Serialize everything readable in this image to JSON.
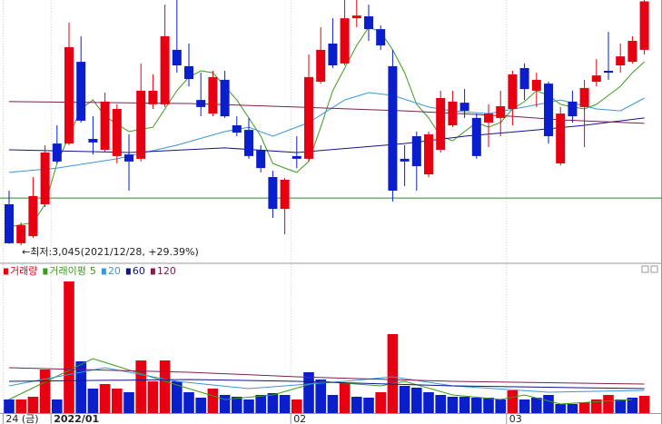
{
  "chart_data": [
    {
      "type": "candlestick",
      "annotation": "←최저:3,045(2021/12/28, +29.39%)",
      "up_color": "#e60012",
      "down_color": "#0a1ecc",
      "open": [
        3195,
        3052,
        3078,
        3195,
        3418,
        3418,
        3718,
        3435,
        3395,
        3372,
        3378,
        3362,
        3562,
        3562,
        3762,
        3702,
        3578,
        3528,
        3652,
        3485,
        3468,
        3395,
        3295,
        3178,
        3372,
        3362,
        3645,
        3785,
        3712,
        3878,
        3885,
        3838,
        3702,
        3362,
        3445,
        3305,
        3395,
        3485,
        3568,
        3512,
        3495,
        3512,
        3545,
        3695,
        3612,
        3638,
        3345,
        3572,
        3552,
        3645,
        3685,
        3705,
        3718,
        3762
      ],
      "high": [
        3245,
        3128,
        3295,
        3412,
        3485,
        3862,
        3812,
        3518,
        3605,
        3562,
        3452,
        3712,
        3672,
        3928,
        3945,
        3785,
        3678,
        3685,
        3685,
        3518,
        3512,
        3412,
        3318,
        3292,
        3445,
        3745,
        3845,
        3878,
        3945,
        3945,
        3928,
        3852,
        3762,
        3412,
        3462,
        3462,
        3612,
        3612,
        3618,
        3528,
        3562,
        3612,
        3685,
        3712,
        3678,
        3645,
        3552,
        3612,
        3652,
        3728,
        3828,
        3785,
        3812,
        3945
      ],
      "low": [
        3050,
        3045,
        3072,
        3185,
        3345,
        3412,
        3495,
        3378,
        3385,
        3345,
        3245,
        3352,
        3545,
        3552,
        3678,
        3628,
        3518,
        3518,
        3512,
        3445,
        3362,
        3312,
        3145,
        3085,
        3328,
        3352,
        3638,
        3695,
        3705,
        3845,
        3795,
        3762,
        3205,
        3262,
        3245,
        3295,
        3385,
        3478,
        3512,
        3362,
        3405,
        3445,
        3485,
        3578,
        3552,
        3418,
        3338,
        3495,
        3405,
        3628,
        3652,
        3678,
        3712,
        3745
      ],
      "close": [
        3052,
        3118,
        3225,
        3385,
        3352,
        3772,
        3502,
        3422,
        3572,
        3545,
        3352,
        3612,
        3612,
        3812,
        3705,
        3655,
        3552,
        3662,
        3518,
        3458,
        3372,
        3328,
        3178,
        3285,
        3362,
        3662,
        3762,
        3705,
        3878,
        3888,
        3838,
        3778,
        3245,
        3352,
        3335,
        3452,
        3585,
        3572,
        3538,
        3372,
        3528,
        3555,
        3672,
        3618,
        3652,
        3445,
        3528,
        3518,
        3622,
        3668,
        3678,
        3738,
        3795,
        3940
      ],
      "ylim": [
        2985,
        3945
      ],
      "hline": 3218,
      "hline_color": "#2e8b2e",
      "lines": [
        {
          "color": "#3d9a1e",
          "x": [
            0,
            2,
            3,
            4,
            5,
            6,
            7,
            8,
            10,
            12,
            14,
            15,
            16,
            17,
            18,
            19,
            20,
            21,
            22,
            23,
            24,
            25,
            26,
            27,
            28,
            29,
            30,
            31,
            32,
            33,
            34,
            35,
            36,
            37,
            38,
            39,
            40,
            41,
            42,
            43,
            44,
            45,
            46,
            47,
            48,
            49,
            50,
            51,
            52,
            53
          ],
          "values": [
            3112,
            3128,
            3195,
            3345,
            3445,
            3545,
            3578,
            3518,
            3462,
            3478,
            3612,
            3662,
            3685,
            3678,
            3628,
            3578,
            3512,
            3445,
            3345,
            3328,
            3312,
            3352,
            3478,
            3612,
            3695,
            3778,
            3845,
            3828,
            3762,
            3678,
            3562,
            3512,
            3445,
            3428,
            3462,
            3495,
            3478,
            3495,
            3545,
            3572,
            3612,
            3595,
            3562,
            3552,
            3545,
            3562,
            3595,
            3628,
            3678,
            3718
          ]
        },
        {
          "color": "#3a97d8",
          "x": [
            0,
            4,
            9,
            14,
            18,
            20,
            22,
            25,
            28,
            30,
            32,
            35,
            37,
            40,
            43,
            46,
            49,
            51,
            53
          ],
          "values": [
            3312,
            3328,
            3362,
            3412,
            3462,
            3478,
            3445,
            3495,
            3578,
            3605,
            3595,
            3552,
            3538,
            3528,
            3552,
            3578,
            3545,
            3538,
            3585
          ]
        },
        {
          "color": "#14148c",
          "x": [
            0,
            10,
            18,
            24,
            33,
            38,
            44,
            48,
            53
          ],
          "values": [
            3395,
            3385,
            3402,
            3385,
            3418,
            3445,
            3468,
            3485,
            3512
          ]
        },
        {
          "color": "#7a2050",
          "x": [
            0,
            15,
            24,
            33,
            42,
            46,
            53
          ],
          "values": [
            3572,
            3565,
            3552,
            3538,
            3518,
            3505,
            3492
          ]
        }
      ],
      "xticks": [
        {
          "value": 0,
          "label": "24 (금)"
        },
        {
          "value": 4,
          "label": "2022/01"
        },
        {
          "value": 24,
          "label": "02"
        },
        {
          "value": 42,
          "label": "03"
        }
      ]
    },
    {
      "type": "bar",
      "series": [
        {
          "name": "거래량",
          "color": "#e60012",
          "values": [
            15,
            15,
            18,
            48,
            15,
            145,
            57,
            27,
            32,
            27,
            23,
            58,
            35,
            58,
            35,
            23,
            17,
            27,
            20,
            18,
            15,
            20,
            22,
            20,
            15,
            45,
            37,
            20,
            33,
            18,
            17,
            23,
            87,
            30,
            28,
            23,
            20,
            18,
            18,
            17,
            17,
            15,
            25,
            15,
            17,
            20,
            10,
            10,
            12,
            15,
            20,
            15,
            17,
            19
          ],
          "colors": [
            "#0a1ecc",
            "#e60012",
            "#e60012",
            "#e60012",
            "#0a1ecc",
            "#e60012",
            "#0a1ecc",
            "#0a1ecc",
            "#e60012",
            "#e60012",
            "#0a1ecc",
            "#e60012",
            "#e60012",
            "#e60012",
            "#0a1ecc",
            "#0a1ecc",
            "#0a1ecc",
            "#e60012",
            "#0a1ecc",
            "#0a1ecc",
            "#0a1ecc",
            "#0a1ecc",
            "#0a1ecc",
            "#0a1ecc",
            "#e60012",
            "#0a1ecc",
            "#0a1ecc",
            "#0a1ecc",
            "#e60012",
            "#0a1ecc",
            "#0a1ecc",
            "#e60012",
            "#e60012",
            "#0a1ecc",
            "#0a1ecc",
            "#0a1ecc",
            "#0a1ecc",
            "#0a1ecc",
            "#0a1ecc",
            "#0a1ecc",
            "#0a1ecc",
            "#0a1ecc",
            "#e60012",
            "#0a1ecc",
            "#0a1ecc",
            "#0a1ecc",
            "#0a1ecc",
            "#0a1ecc",
            "#e60012",
            "#e60012",
            "#e60012",
            "#0a1ecc",
            "#0a1ecc",
            "#e60012"
          ]
        }
      ],
      "ma_label": "거래이평",
      "lines": [
        {
          "name": "5",
          "color": "#3d9a1e",
          "x": [
            0,
            7,
            13,
            18,
            22,
            26,
            31,
            33,
            37,
            41,
            43,
            46,
            52
          ],
          "values": [
            15,
            60,
            35,
            15,
            20,
            35,
            30,
            35,
            20,
            15,
            20,
            10,
            15
          ]
        },
        {
          "name": "20",
          "color": "#3a97d8",
          "x": [
            0,
            8,
            14,
            20,
            28,
            32,
            37,
            45,
            53
          ],
          "values": [
            30,
            50,
            35,
            27,
            35,
            40,
            30,
            23,
            25
          ]
        },
        {
          "name": "60",
          "color": "#14148c",
          "x": [
            0,
            15,
            24,
            37,
            53
          ],
          "values": [
            35,
            37,
            35,
            30,
            27
          ]
        },
        {
          "name": "120",
          "color": "#7a2050",
          "x": [
            0,
            15,
            24,
            37,
            53
          ],
          "values": [
            50,
            45,
            40,
            35,
            32
          ]
        }
      ],
      "ylim": [
        0,
        150
      ]
    }
  ]
}
